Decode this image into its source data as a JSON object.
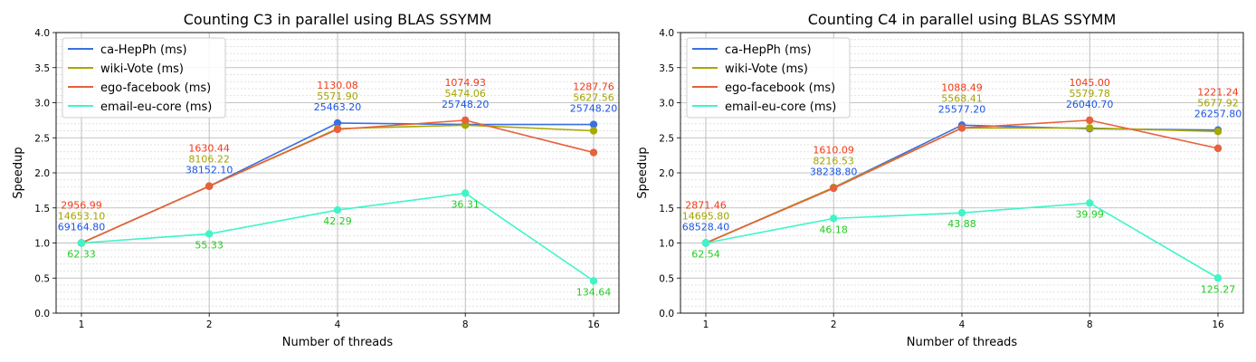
{
  "colors": {
    "ca-HepPh": "#3b6fe0",
    "wiki-Vote": "#a8a800",
    "ego-facebook": "#e8603c",
    "email-eu-core": "#3ff5c8"
  },
  "label_colors": {
    "ca-HepPh": "#1a56e8",
    "wiki-Vote": "#a3a300",
    "ego-facebook": "#f03a17",
    "email-eu-core": "#22cc22"
  },
  "chart_data": [
    {
      "type": "line",
      "title": "Counting C3 in parallel using BLAS SSYMM",
      "xlabel": "Number of threads",
      "ylabel": "Speedup",
      "x": [
        "1",
        "2",
        "4",
        "8",
        "16"
      ],
      "ylim": [
        0,
        4
      ],
      "yticks": [
        "0.0",
        "0.5",
        "1.0",
        "1.5",
        "2.0",
        "2.5",
        "3.0",
        "3.5",
        "4.0"
      ],
      "grid": true,
      "legend": "top-left",
      "series": [
        {
          "name": "ca-HepPh (ms)",
          "key": "ca-HepPh",
          "values": [
            1.0,
            1.81,
            2.71,
            2.69,
            2.69
          ],
          "labels": [
            "69164.80",
            "38152.10",
            "25463.20",
            "25748.20",
            "25748.20"
          ]
        },
        {
          "name": "wiki-Vote (ms)",
          "key": "wiki-Vote",
          "values": [
            1.0,
            1.81,
            2.63,
            2.68,
            2.6
          ],
          "labels": [
            "14653.10",
            "8106.22",
            "5571.90",
            "5474.06",
            "5627.56"
          ]
        },
        {
          "name": "ego-facebook (ms)",
          "key": "ego-facebook",
          "values": [
            1.0,
            1.81,
            2.62,
            2.75,
            2.29
          ],
          "labels": [
            "2956.99",
            "1630.44",
            "1130.08",
            "1074.93",
            "1287.76"
          ]
        },
        {
          "name": "email-eu-core (ms)",
          "key": "email-eu-core",
          "values": [
            1.0,
            1.13,
            1.47,
            1.71,
            0.46
          ],
          "labels": [
            "62.33",
            "55.33",
            "42.29",
            "36.31",
            "134.64"
          ]
        }
      ]
    },
    {
      "type": "line",
      "title": "Counting C4 in parallel using BLAS SSYMM",
      "xlabel": "Number of threads",
      "ylabel": "Speedup",
      "x": [
        "1",
        "2",
        "4",
        "8",
        "16"
      ],
      "ylim": [
        0,
        4
      ],
      "yticks": [
        "0.0",
        "0.5",
        "1.0",
        "1.5",
        "2.0",
        "2.5",
        "3.0",
        "3.5",
        "4.0"
      ],
      "grid": true,
      "legend": "top-left",
      "series": [
        {
          "name": "ca-HepPh (ms)",
          "key": "ca-HepPh",
          "values": [
            1.0,
            1.79,
            2.68,
            2.63,
            2.61
          ],
          "labels": [
            "68528.40",
            "38238.80",
            "25577.20",
            "26040.70",
            "26257.80"
          ]
        },
        {
          "name": "wiki-Vote (ms)",
          "key": "wiki-Vote",
          "values": [
            1.0,
            1.79,
            2.64,
            2.64,
            2.59
          ],
          "labels": [
            "14695.80",
            "8216.53",
            "5568.41",
            "5579.78",
            "5677.92"
          ]
        },
        {
          "name": "ego-facebook (ms)",
          "key": "ego-facebook",
          "values": [
            1.0,
            1.78,
            2.64,
            2.75,
            2.35
          ],
          "labels": [
            "2871.46",
            "1610.09",
            "1088.49",
            "1045.00",
            "1221.24"
          ]
        },
        {
          "name": "email-eu-core (ms)",
          "key": "email-eu-core",
          "values": [
            1.0,
            1.35,
            1.43,
            1.57,
            0.5
          ],
          "labels": [
            "62.54",
            "46.18",
            "43.88",
            "39.99",
            "125.27"
          ]
        }
      ]
    }
  ]
}
